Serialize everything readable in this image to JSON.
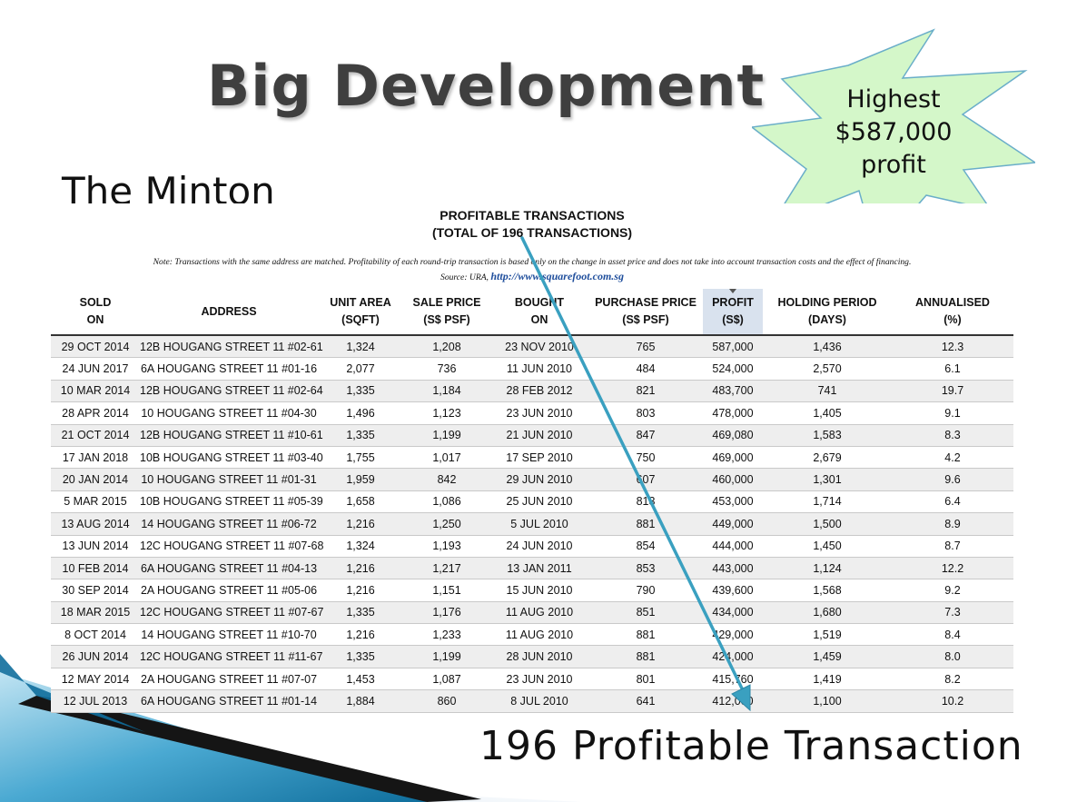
{
  "slide": {
    "title": "Big Development",
    "subtitle": "The Minton",
    "star_lines": [
      "Highest",
      "$587,000",
      "profit"
    ],
    "bottom_caption": "196 Profitable Transaction"
  },
  "document": {
    "heading_line1": "PROFITABLE TRANSACTIONS",
    "heading_line2": "(TOTAL OF 196 TRANSACTIONS)",
    "note": "Note: Transactions with the same address are matched. Profitability of each round-trip transaction is based only on the change in asset price and does not take into account transaction costs and the effect of financing.",
    "source_prefix": "Source: URA,",
    "source_link": "http://www.squarefoot.com.sg",
    "columns": [
      {
        "line1": "SOLD",
        "line2": "ON"
      },
      {
        "line1": "ADDRESS",
        "line2": ""
      },
      {
        "line1": "UNIT AREA",
        "line2": "(SQFT)"
      },
      {
        "line1": "SALE PRICE",
        "line2": "(S$ PSF)"
      },
      {
        "line1": "BOUGHT",
        "line2": "ON"
      },
      {
        "line1": "PURCHASE PRICE",
        "line2": "(S$ PSF)"
      },
      {
        "line1": "PROFIT",
        "line2": "(S$)"
      },
      {
        "line1": "HOLDING PERIOD",
        "line2": "(DAYS)"
      },
      {
        "line1": "ANNUALISED",
        "line2": "(%)"
      }
    ],
    "rows": [
      [
        "29 OCT 2014",
        "12B HOUGANG STREET 11 #02-61",
        "1,324",
        "1,208",
        "23 NOV 2010",
        "765",
        "587,000",
        "1,436",
        "12.3"
      ],
      [
        "24 JUN 2017",
        "6A HOUGANG STREET 11 #01-16",
        "2,077",
        "736",
        "11 JUN 2010",
        "484",
        "524,000",
        "2,570",
        "6.1"
      ],
      [
        "10 MAR 2014",
        "12B HOUGANG STREET 11 #02-64",
        "1,335",
        "1,184",
        "28 FEB 2012",
        "821",
        "483,700",
        "741",
        "19.7"
      ],
      [
        "28 APR 2014",
        "10 HOUGANG STREET 11 #04-30",
        "1,496",
        "1,123",
        "23 JUN 2010",
        "803",
        "478,000",
        "1,405",
        "9.1"
      ],
      [
        "21 OCT 2014",
        "12B HOUGANG STREET 11 #10-61",
        "1,335",
        "1,199",
        "21 JUN 2010",
        "847",
        "469,080",
        "1,583",
        "8.3"
      ],
      [
        "17 JAN 2018",
        "10B HOUGANG STREET 11 #03-40",
        "1,755",
        "1,017",
        "17 SEP 2010",
        "750",
        "469,000",
        "2,679",
        "4.2"
      ],
      [
        "20 JAN 2014",
        "10 HOUGANG STREET 11 #01-31",
        "1,959",
        "842",
        "29 JUN 2010",
        "607",
        "460,000",
        "1,301",
        "9.6"
      ],
      [
        "5 MAR 2015",
        "10B HOUGANG STREET 11 #05-39",
        "1,658",
        "1,086",
        "25 JUN 2010",
        "813",
        "453,000",
        "1,714",
        "6.4"
      ],
      [
        "13 AUG 2014",
        "14 HOUGANG STREET 11 #06-72",
        "1,216",
        "1,250",
        "5 JUL 2010",
        "881",
        "449,000",
        "1,500",
        "8.9"
      ],
      [
        "13 JUN 2014",
        "12C HOUGANG STREET 11 #07-68",
        "1,324",
        "1,193",
        "24 JUN 2010",
        "854",
        "444,000",
        "1,450",
        "8.7"
      ],
      [
        "10 FEB 2014",
        "6A HOUGANG STREET 11 #04-13",
        "1,216",
        "1,217",
        "13 JAN 2011",
        "853",
        "443,000",
        "1,124",
        "12.2"
      ],
      [
        "30 SEP 2014",
        "2A HOUGANG STREET 11 #05-06",
        "1,216",
        "1,151",
        "15 JUN 2010",
        "790",
        "439,600",
        "1,568",
        "9.2"
      ],
      [
        "18 MAR 2015",
        "12C HOUGANG STREET 11 #07-67",
        "1,335",
        "1,176",
        "11 AUG 2010",
        "851",
        "434,000",
        "1,680",
        "7.3"
      ],
      [
        "8 OCT 2014",
        "14 HOUGANG STREET 11 #10-70",
        "1,216",
        "1,233",
        "11 AUG 2010",
        "881",
        "429,000",
        "1,519",
        "8.4"
      ],
      [
        "26 JUN 2014",
        "12C HOUGANG STREET 11 #11-67",
        "1,335",
        "1,199",
        "28 JUN 2010",
        "881",
        "424,000",
        "1,459",
        "8.0"
      ],
      [
        "12 MAY 2014",
        "2A HOUGANG STREET 11 #07-07",
        "1,453",
        "1,087",
        "23 JUN 2010",
        "801",
        "415,760",
        "1,419",
        "8.2"
      ],
      [
        "12 JUL 2013",
        "6A HOUGANG STREET 11 #01-14",
        "1,884",
        "860",
        "8 JUL 2010",
        "641",
        "412,000",
        "1,100",
        "10.2"
      ]
    ]
  },
  "colors": {
    "title": "#3f3f3f",
    "star_fill": "#d4f7c9",
    "star_stroke": "#6aaec9",
    "arrow": "#3aa0c0",
    "link": "#1f4e9c",
    "corner_blue": "#1d88b8",
    "corner_dark": "#1a1a1a",
    "profit_header_bg": "#d9e2ee",
    "row_alt_bg": "#eeeeee"
  },
  "icons": {
    "starburst": "callout-starburst-shape",
    "arrow": "diagonal-arrow",
    "sort": "sort-down-triangle"
  }
}
